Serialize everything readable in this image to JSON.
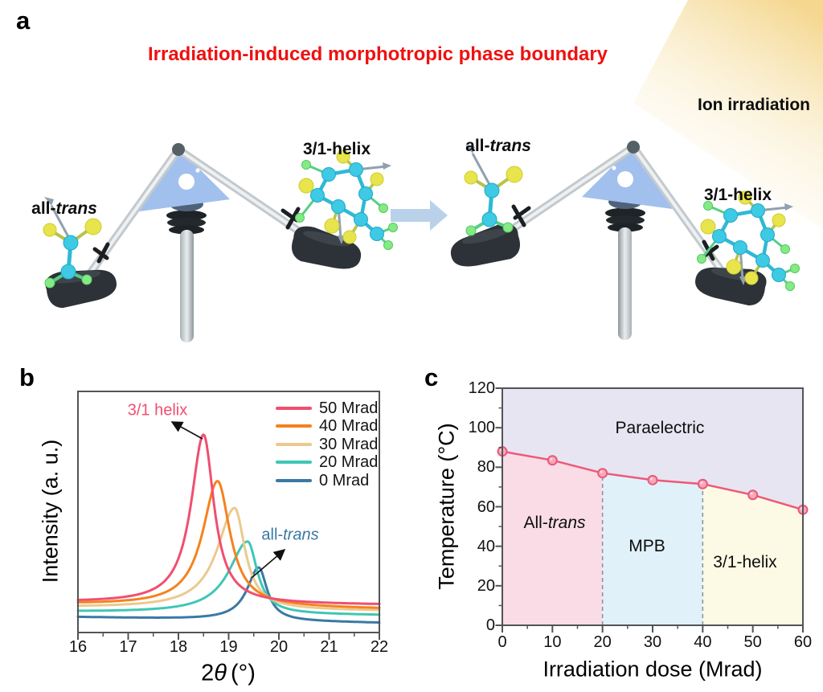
{
  "figure": {
    "panels": {
      "a": "a",
      "b": "b",
      "c": "c"
    }
  },
  "panel_a": {
    "title": "Irradiation-induced morphotropic phase boundary",
    "title_color": "#ee1111",
    "ion_irradiation_label": "Ion irradiation",
    "seesaw_before": {
      "left_molecule_label": {
        "prefix": "all-",
        "italic": "trans"
      },
      "right_molecule_label": "3/1-helix"
    },
    "seesaw_after": {
      "left_molecule_label": {
        "prefix": "all-",
        "italic": "trans"
      },
      "right_molecule_label": "3/1-helix"
    }
  },
  "chart_data": [
    {
      "panel": "b",
      "type": "line",
      "title": "",
      "xlabel": "2θ (°)",
      "xlabel_parts": [
        "2",
        "θ",
        "(°)"
      ],
      "ylabel": "Intensity (a. u.)",
      "xlim": [
        16,
        22
      ],
      "x_ticks": [
        16,
        17,
        18,
        19,
        20,
        21,
        22
      ],
      "grid": false,
      "legend_position": "top-right",
      "series": [
        {
          "name": "50 Mrad",
          "color": "#f04f70",
          "peak_center": 18.5,
          "amplitude": 0.7,
          "hwhm_left": 0.3,
          "hwhm_right": 0.25,
          "base_left": 0.125,
          "base_right": 0.115
        },
        {
          "name": "40 Mrad",
          "color": "#f5821f",
          "peak_center": 18.78,
          "amplitude": 0.52,
          "hwhm_left": 0.36,
          "hwhm_right": 0.3,
          "base_left": 0.117,
          "base_right": 0.098
        },
        {
          "name": "30 Mrad",
          "color": "#ecc98e",
          "peak_center": 19.12,
          "amplitude": 0.42,
          "hwhm_left": 0.42,
          "hwhm_right": 0.25,
          "base_left": 0.104,
          "base_right": 0.09
        },
        {
          "name": "20 Mrad",
          "color": "#3fc7b4",
          "peak_center": 19.38,
          "amplitude": 0.3,
          "hwhm_left": 0.45,
          "hwhm_right": 0.23,
          "base_left": 0.085,
          "base_right": 0.072
        },
        {
          "name": "0 Mrad",
          "color": "#3a79a4",
          "peak_center": 19.6,
          "amplitude": 0.22,
          "hwhm_left": 0.28,
          "hwhm_right": 0.2,
          "base_left": 0.064,
          "base_right": 0.04
        }
      ],
      "annotations": [
        {
          "label": "3/1 helix",
          "color": "#f04f70",
          "points_to": "50 Mrad peak at 18.5"
        },
        {
          "prefix": "all-",
          "italic": "trans",
          "color": "#3a79a4",
          "points_to": "0 Mrad peak at 19.6"
        }
      ]
    },
    {
      "panel": "c",
      "type": "line",
      "title": "",
      "xlabel": "Irradiation dose (Mrad)",
      "ylabel": "Temperature (°C)",
      "xlim": [
        0,
        60
      ],
      "ylim": [
        0,
        120
      ],
      "x_ticks": [
        0,
        10,
        20,
        30,
        40,
        50,
        60
      ],
      "y_ticks": [
        0,
        20,
        40,
        60,
        80,
        100,
        120
      ],
      "grid": false,
      "x": [
        0,
        10,
        20,
        30,
        40,
        50,
        60
      ],
      "temperature": [
        88,
        83.5,
        77,
        73.5,
        71.5,
        66,
        58.5
      ],
      "line_color": "#ef5878",
      "marker_fill": "#f8a8b8",
      "marker_edge": "#e9587a",
      "phase_boundaries_x": [
        20,
        40
      ],
      "boundary_dash_color": "#8e969c",
      "regions": [
        {
          "label": "Paraelectric",
          "fill": "#e6e5f1"
        },
        {
          "label_prefix": "All-",
          "label_italic": "trans",
          "fill": "#f9dce6"
        },
        {
          "label": "MPB",
          "fill": "#e0f1f9"
        },
        {
          "label": "3/1-helix",
          "fill": "#fcfae4"
        }
      ]
    }
  ]
}
